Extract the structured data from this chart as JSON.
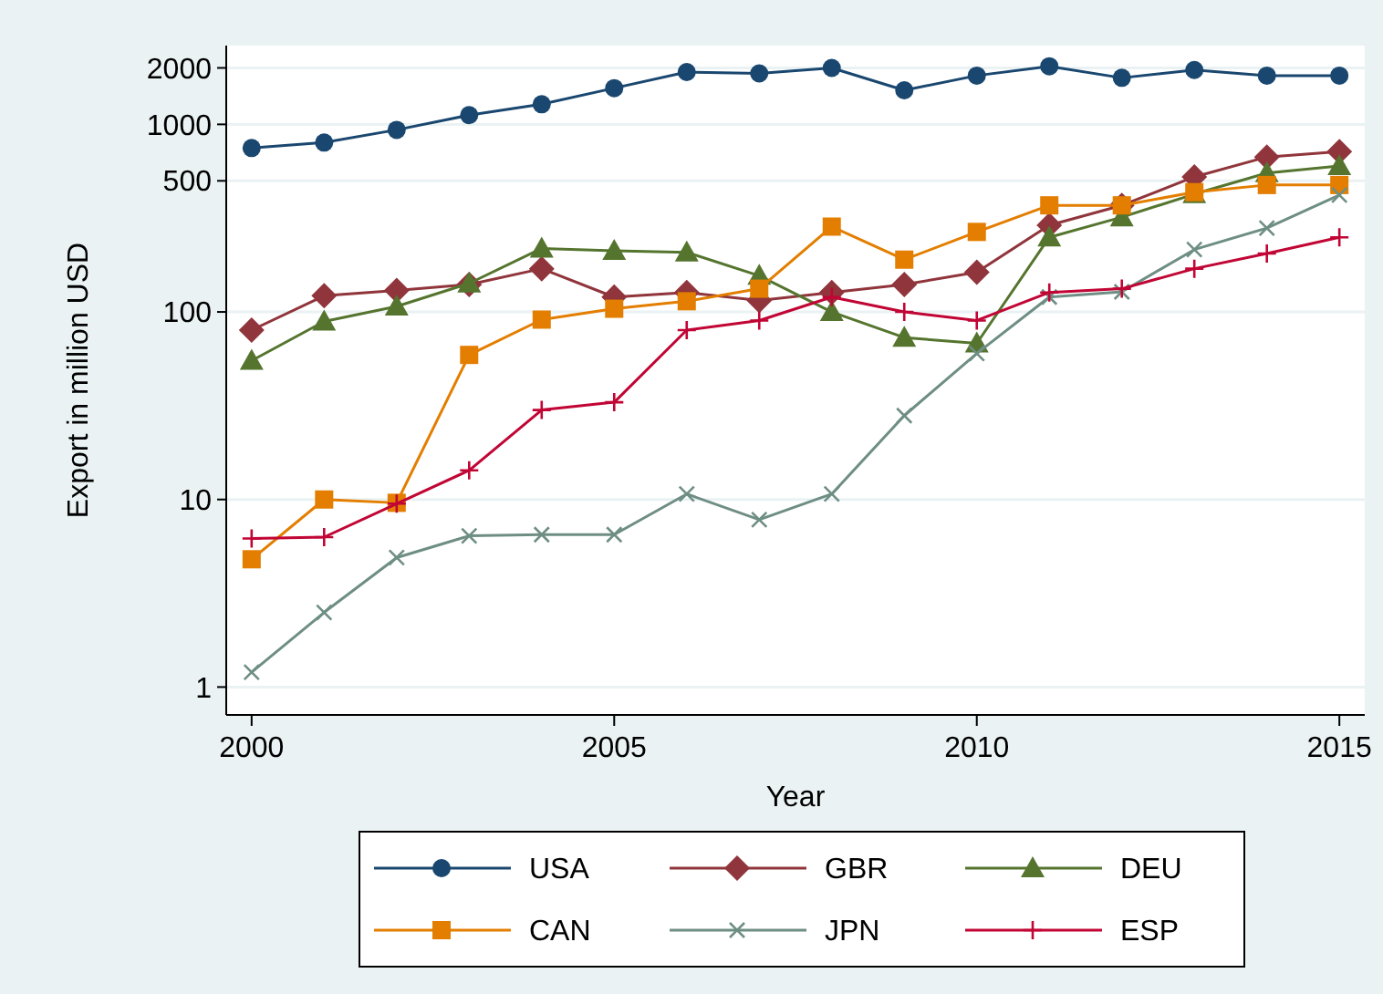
{
  "chart_data": {
    "type": "line",
    "xlabel": "Year",
    "ylabel": "Export in million USD",
    "log": "y",
    "grid": "y",
    "legend": "bottom",
    "x": [
      2000,
      2001,
      2002,
      2003,
      2004,
      2005,
      2006,
      2007,
      2008,
      2009,
      2010,
      2011,
      2012,
      2013,
      2014,
      2015
    ],
    "xlim": [
      1999.65,
      2015.35
    ],
    "xticks": [
      2000,
      2005,
      2010,
      2015
    ],
    "ylim": [
      0.71,
      2630
    ],
    "yticks": [
      1,
      10,
      100,
      500,
      1000,
      2000
    ],
    "series": [
      {
        "name": "USA",
        "color": "#1a476f",
        "marker": "circle",
        "values": [
          748,
          800,
          935,
          1120,
          1280,
          1560,
          1900,
          1870,
          2000,
          1520,
          1820,
          2040,
          1770,
          1950,
          1820,
          1820
        ]
      },
      {
        "name": "GBR",
        "color": "#90353b",
        "marker": "diamond",
        "values": [
          80,
          122,
          130,
          140,
          170,
          120,
          127,
          115,
          127,
          140,
          163,
          290,
          370,
          525,
          670,
          715
        ]
      },
      {
        "name": "DEU",
        "color": "#55752f",
        "marker": "triangle",
        "values": [
          55,
          89,
          107,
          142,
          218,
          212,
          208,
          156,
          100,
          73,
          68,
          250,
          320,
          425,
          550,
          600
        ]
      },
      {
        "name": "CAN",
        "color": "#e37e00",
        "marker": "square",
        "values": [
          4.8,
          10,
          9.6,
          59,
          91,
          104,
          114,
          133,
          285,
          190,
          267,
          370,
          370,
          435,
          475,
          475
        ]
      },
      {
        "name": "JPN",
        "color": "#6e8e84",
        "marker": "cross",
        "values": [
          1.2,
          2.5,
          4.9,
          6.4,
          6.5,
          6.5,
          10.7,
          7.8,
          10.7,
          28,
          60,
          120,
          128,
          215,
          280,
          420
        ]
      },
      {
        "name": "ESP",
        "color": "#c10534",
        "marker": "plus",
        "values": [
          6.2,
          6.3,
          9.5,
          14.3,
          30,
          33,
          80,
          90,
          120,
          100,
          90,
          127,
          133,
          170,
          205,
          250
        ]
      }
    ]
  }
}
